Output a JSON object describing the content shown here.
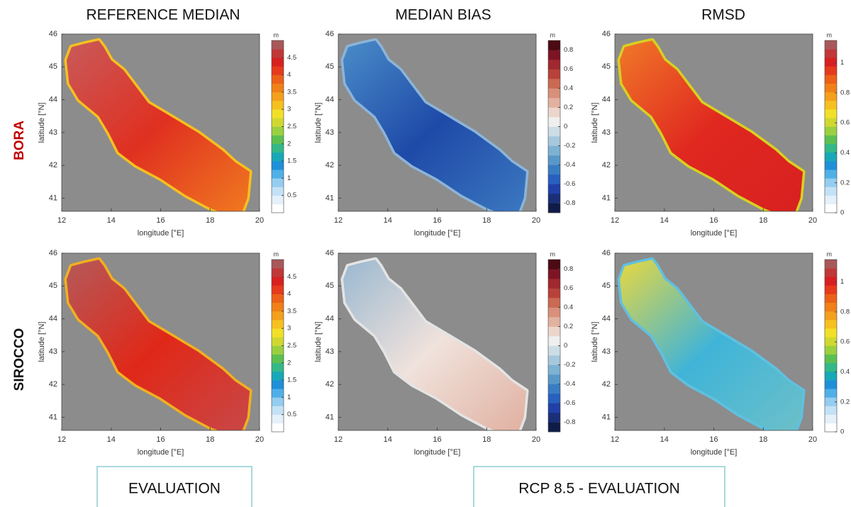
{
  "columns": [
    "REFERENCE MEDIAN",
    "MEDIAN BIAS",
    "RMSD"
  ],
  "rows": [
    "BORA",
    "SIROCCO"
  ],
  "axes": {
    "xlabel": "longitude [°E]",
    "ylabel": "latitude [°N]",
    "xlim": [
      12,
      20
    ],
    "ylim": [
      40.6,
      46
    ],
    "xticks": [
      12,
      14,
      16,
      18,
      20
    ],
    "yticks": [
      41,
      42,
      43,
      44,
      45,
      46
    ]
  },
  "colorbars": [
    {
      "unit": "m",
      "lim": [
        0,
        5
      ],
      "ticks": [
        0.5,
        1,
        1.5,
        2,
        2.5,
        3,
        3.5,
        4,
        4.5
      ],
      "colors": [
        "#ffffff",
        "#e4f0fa",
        "#c4e2f6",
        "#94cdf0",
        "#4fb0e8",
        "#1f8fd8",
        "#18a8b8",
        "#34b888",
        "#5cc050",
        "#9ad040",
        "#d0d830",
        "#f2e028",
        "#f6c020",
        "#f3a01c",
        "#f08018",
        "#ec6018",
        "#e63a1c",
        "#d82020",
        "#c03838",
        "#a85858"
      ]
    },
    {
      "unit": "m",
      "lim": [
        -0.9,
        0.9
      ],
      "ticks": [
        -0.8,
        -0.6,
        -0.4,
        -0.2,
        0,
        0.2,
        0.4,
        0.6,
        0.8
      ],
      "colors": [
        "#101c48",
        "#1a2f78",
        "#2040a8",
        "#2860c0",
        "#3a7cc2",
        "#5898c8",
        "#7eb2d2",
        "#a6c8dc",
        "#cddde6",
        "#efefef",
        "#ecd6cc",
        "#e2b2a0",
        "#d8907a",
        "#ca6a52",
        "#b8423a",
        "#a0282e",
        "#7c1424",
        "#4c0a14"
      ]
    },
    {
      "unit": "m",
      "lim": [
        0,
        1.15
      ],
      "ticks": [
        0,
        0.2,
        0.4,
        0.6,
        0.8,
        1
      ],
      "colors": [
        "#ffffff",
        "#e4f0fa",
        "#c4e2f6",
        "#94cdf0",
        "#4fb0e8",
        "#1f8fd8",
        "#18a8b8",
        "#34b888",
        "#5cc050",
        "#9ad040",
        "#d0d830",
        "#f2e028",
        "#f6c020",
        "#f3a01c",
        "#f08018",
        "#ec6018",
        "#e63a1c",
        "#d82020",
        "#c03838",
        "#a85858"
      ]
    }
  ],
  "footer": [
    "EVALUATION",
    "RCP 8.5 - EVALUATION"
  ]
}
